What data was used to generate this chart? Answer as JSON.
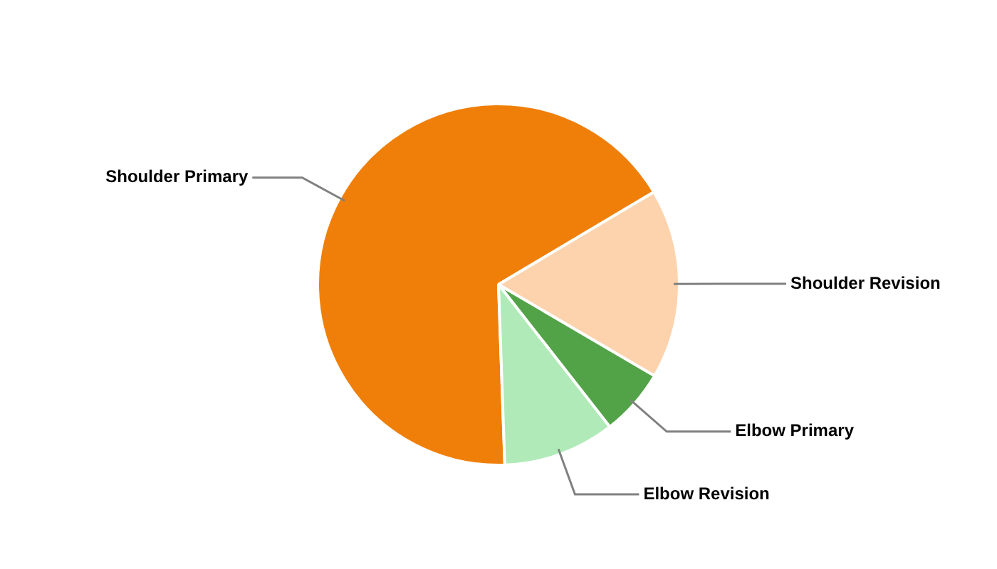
{
  "chart_data": {
    "type": "pie",
    "categories": [
      "Shoulder Primary",
      "Shoulder Revision",
      "Elbow Primary",
      "Elbow Revision"
    ],
    "values": [
      67,
      17,
      6,
      10
    ],
    "colors": [
      "#f07f09",
      "#fcd3ad",
      "#52a347",
      "#b0eab8"
    ],
    "legend": false
  }
}
